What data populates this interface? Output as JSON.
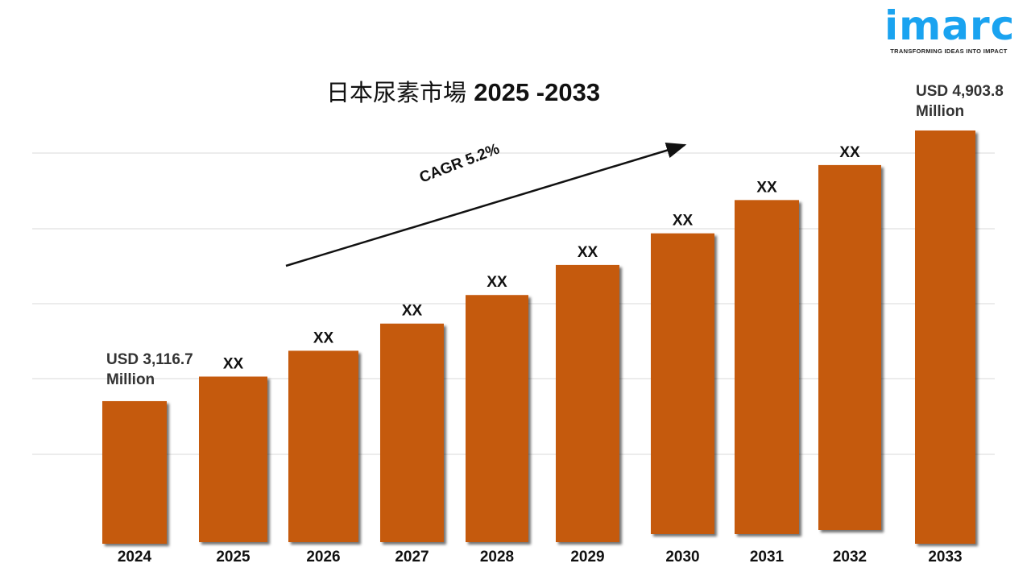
{
  "logo": {
    "word": "imarc",
    "tagline": "TRANSFORMING IDEAS INTO IMPACT"
  },
  "title": {
    "prefix": "日本尿素市場",
    "years": "2025 -2033"
  },
  "annotations": {
    "start_value": "USD 3,116.7",
    "start_unit": "Million",
    "end_value": "USD 4,903.8",
    "end_unit": "Million",
    "cagr": "CAGR 5.2%"
  },
  "colors": {
    "bar": "#C55A11",
    "grid": "#D9D9D9",
    "logo": "#1AA3F0"
  },
  "chart_data": {
    "type": "bar",
    "title": "日本尿素市場 2025 -2033",
    "xlabel": "",
    "ylabel": "USD Million",
    "categories": [
      "2024",
      "2025",
      "2026",
      "2027",
      "2028",
      "2029",
      "2030",
      "2031",
      "2032",
      "2033"
    ],
    "values": [
      3116.7,
      3278.8,
      3449.3,
      3628.7,
      3817.4,
      4015.9,
      4224.7,
      4444.4,
      4675.5,
      4903.8
    ],
    "data_labels": [
      "",
      "XX",
      "XX",
      "XX",
      "XX",
      "XX",
      "XX",
      "XX",
      "XX",
      ""
    ],
    "grid": true,
    "legend": "none"
  }
}
